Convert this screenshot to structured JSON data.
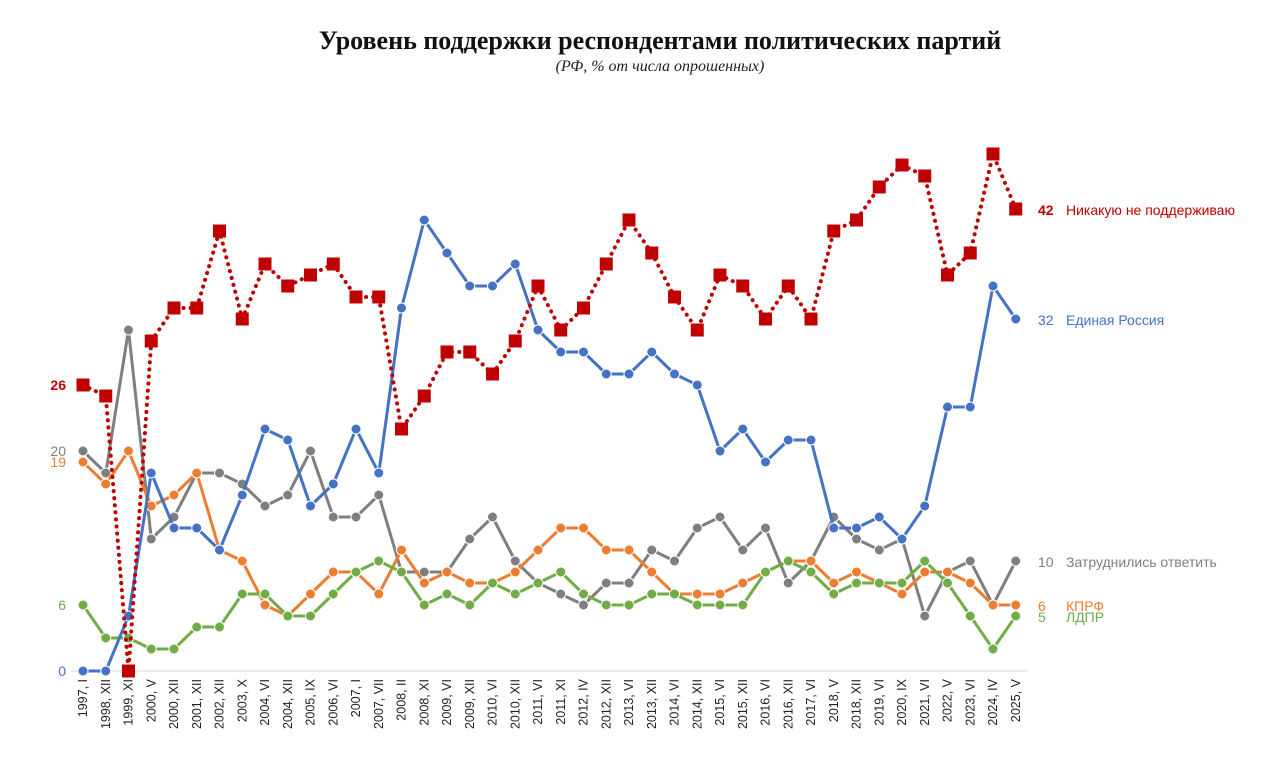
{
  "chart_data": {
    "type": "line",
    "title": "Уровень поддержки респондентами политических партий",
    "subtitle": "(РФ, % от числа опрошенных)",
    "xlabel": "",
    "ylabel": "",
    "ylim": [
      0,
      47
    ],
    "grid": false,
    "legend": "labels at line ends (right)",
    "categories": [
      "1997, I",
      "1998, XII",
      "1999, XI",
      "2000, V",
      "2000, XII",
      "2001, XII",
      "2002, XII",
      "2003, X",
      "2004, VI",
      "2004, XII",
      "2005, IX",
      "2006, VI",
      "2007, I",
      "2007, VII",
      "2008, II",
      "2008, XI",
      "2009, VI",
      "2009, XII",
      "2010, VI",
      "2010, XII",
      "2011, VI",
      "2011, XI",
      "2012, IV",
      "2012, XII",
      "2013, VI",
      "2013, XII",
      "2014, VI",
      "2014, XII",
      "2015, VI",
      "2015, XII",
      "2016, VI",
      "2016, XII",
      "2017, VI",
      "2018, V",
      "2018, XII",
      "2019, VI",
      "2020, IX",
      "2021, VI",
      "2022, V",
      "2023, VI",
      "2024, IV",
      "2025, V"
    ],
    "series": [
      {
        "name": "Никакую не поддерживаю",
        "color": "#c00000",
        "style": "dotted-square",
        "start_label": "26",
        "end_label": "42",
        "values": [
          26,
          25,
          0,
          30,
          33,
          33,
          40,
          32,
          37,
          35,
          36,
          37,
          34,
          34,
          22,
          25,
          29,
          29,
          27,
          30,
          35,
          31,
          33,
          37,
          41,
          38,
          34,
          31,
          36,
          35,
          32,
          35,
          32,
          40,
          41,
          44,
          46,
          45,
          36,
          38,
          47,
          42
        ]
      },
      {
        "name": "Единая Россия",
        "color": "#4472c4",
        "style": "solid-circle",
        "start_label": "0",
        "end_label": "32",
        "values": [
          0,
          0,
          5,
          18,
          13,
          13,
          11,
          16,
          22,
          21,
          15,
          17,
          22,
          18,
          33,
          41,
          38,
          35,
          35,
          37,
          31,
          29,
          29,
          27,
          27,
          29,
          27,
          26,
          20,
          22,
          19,
          21,
          21,
          13,
          13,
          14,
          12,
          15,
          24,
          24,
          35,
          32
        ]
      },
      {
        "name": "Затруднились ответить",
        "color": "#7f7f7f",
        "style": "solid-circle",
        "start_label": "20",
        "end_label": "10",
        "values": [
          20,
          18,
          31,
          12,
          14,
          18,
          18,
          17,
          15,
          16,
          20,
          14,
          14,
          16,
          9,
          9,
          9,
          12,
          14,
          10,
          8,
          7,
          6,
          8,
          8,
          11,
          10,
          13,
          14,
          11,
          13,
          8,
          10,
          14,
          12,
          11,
          12,
          5,
          9,
          10,
          6,
          10
        ]
      },
      {
        "name": "КПРФ",
        "color": "#ed7d31",
        "style": "solid-circle",
        "start_label": "19",
        "end_label": "6",
        "values": [
          19,
          17,
          20,
          15,
          16,
          18,
          11,
          10,
          6,
          5,
          7,
          9,
          9,
          7,
          11,
          8,
          9,
          8,
          8,
          9,
          11,
          13,
          13,
          11,
          11,
          9,
          7,
          7,
          7,
          8,
          9,
          10,
          10,
          8,
          9,
          8,
          7,
          9,
          9,
          8,
          6,
          6
        ]
      },
      {
        "name": "ЛДПР",
        "color": "#70ad47",
        "style": "solid-circle",
        "start_label": "6",
        "end_label": "5",
        "values": [
          6,
          3,
          3,
          2,
          2,
          4,
          4,
          7,
          7,
          5,
          5,
          7,
          9,
          10,
          9,
          6,
          7,
          6,
          8,
          7,
          8,
          9,
          7,
          6,
          6,
          7,
          7,
          6,
          6,
          6,
          9,
          10,
          9,
          7,
          8,
          8,
          8,
          10,
          8,
          5,
          2,
          5
        ]
      }
    ]
  }
}
